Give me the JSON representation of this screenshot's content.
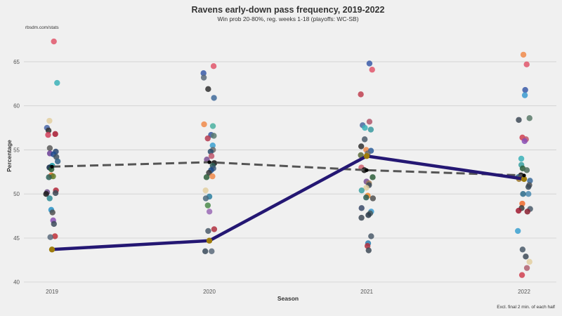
{
  "chart_data": {
    "type": "scatter",
    "title": "Ravens early-down pass frequency, 2019-2022",
    "subtitle": "Win prob 20-80%, reg. weeks 1-18 (playoffs: WC-SB)",
    "credit": "rbsdm.com/stats",
    "note": "Excl. final 2 min. of each half",
    "xlabel": "Season",
    "ylabel": "Percentage",
    "categories": [
      "2019",
      "2020",
      "2021",
      "2022"
    ],
    "ylim": [
      39.5,
      68.5
    ],
    "yticks": [
      40,
      45,
      50,
      55,
      60,
      65
    ],
    "grid": true,
    "ravens": {
      "values": [
        43.7,
        44.7,
        54.3,
        51.7
      ],
      "color": "#241773"
    },
    "league_average": {
      "values": [
        53.1,
        53.6,
        52.7,
        52.1
      ],
      "color": "#555555"
    },
    "teams": [
      {
        "season": "2019",
        "values": [
          67.3,
          62.6,
          58.3,
          57.5,
          57.2,
          56.8,
          56.7,
          55.2,
          54.8,
          54.6,
          54.5,
          54.2,
          53.7,
          53.2,
          53.0,
          52.8,
          52.1,
          52.0,
          51.9,
          50.4,
          50.2,
          50.1,
          50.0,
          49.5,
          48.2,
          47.9,
          47.0,
          46.6,
          45.2,
          45.1
        ],
        "colors": [
          "#e0566b",
          "#3bb2b9",
          "#e3cfa0",
          "#4a67a8",
          "#2f2f2f",
          "#a71930",
          "#d23f5a",
          "#5b5b5b",
          "#29456f",
          "#6b3f96",
          "#1f4c8f",
          "#3f5261",
          "#2e5f85",
          "#1a9aa5",
          "#0a2342",
          "#2d5e3a",
          "#ec6a2b",
          "#5f7f2c",
          "#2b5f56",
          "#b0283a",
          "#6b4a86",
          "#3e4a57",
          "#1a1a1a",
          "#2e8a94",
          "#2792c8",
          "#505050",
          "#8a4fb5",
          "#3c4a5a",
          "#c03038",
          "#5a6b7d"
        ]
      },
      {
        "season": "2020",
        "values": [
          64.5,
          63.7,
          63.2,
          61.9,
          60.9,
          57.9,
          57.7,
          56.7,
          56.6,
          56.3,
          55.5,
          55.0,
          54.8,
          54.3,
          53.9,
          53.5,
          53.2,
          52.9,
          52.7,
          52.4,
          52.0,
          51.9,
          50.4,
          49.7,
          49.5,
          48.7,
          48.0,
          46.0,
          45.8,
          43.5,
          43.5
        ],
        "colors": [
          "#e0566b",
          "#3a5ba8",
          "#5b6a7a",
          "#303030",
          "#3f6a9a",
          "#f08a4a",
          "#4ab0a0",
          "#3858a0",
          "#5a7a70",
          "#b43a50",
          "#3aa0d0",
          "#6a6a6a",
          "#2d4f6d",
          "#c0566b",
          "#7a4f92",
          "#101010",
          "#2b5f56",
          "#3e5b7a",
          "#1a4a8a",
          "#3a3a3a",
          "#f08a4a",
          "#2d5e3a",
          "#e3cfa0",
          "#2b7fa0",
          "#4a6a7d",
          "#4a8a4a",
          "#9a6ab5",
          "#b03040",
          "#4a5a6a",
          "#3a4a5a",
          "#5a6a7a"
        ]
      },
      {
        "season": "2021",
        "values": [
          64.8,
          64.1,
          61.3,
          58.2,
          57.8,
          57.5,
          57.3,
          56.2,
          55.4,
          55.0,
          54.9,
          54.6,
          54.4,
          53.0,
          52.7,
          51.9,
          51.4,
          51.2,
          51.0,
          50.7,
          50.4,
          49.8,
          49.6,
          49.5,
          48.4,
          48.0,
          47.8,
          47.6,
          47.3,
          45.2,
          44.4,
          44.1,
          43.6
        ],
        "colors": [
          "#3a5ba8",
          "#e0566b",
          "#c04050",
          "#b0566b",
          "#4a6aa0",
          "#3bb2b9",
          "#3a9aa0",
          "#4a5a6a",
          "#303030",
          "#f08a4a",
          "#2d5e9a",
          "#6a6a6a",
          "#5a6a3a",
          "#d06070",
          "#101010",
          "#2d5e3a",
          "#7a4f92",
          "#a07a50",
          "#3a4a5a",
          "#e3cfa0",
          "#3aa0a0",
          "#f0882a",
          "#2b5f56",
          "#505050",
          "#3a4a6a",
          "#3a9ad0",
          "#4a5a5a",
          "#2a3a4a",
          "#3e4a57",
          "#4a5a6a",
          "#2d7fb0",
          "#b03040",
          "#3e4a57"
        ]
      },
      {
        "season": "2022",
        "values": [
          65.8,
          64.7,
          61.8,
          61.2,
          58.6,
          58.4,
          56.4,
          56.2,
          56.0,
          54.0,
          53.3,
          52.9,
          52.7,
          52.1,
          51.9,
          51.7,
          51.5,
          51.0,
          50.8,
          50.0,
          50.0,
          48.9,
          48.4,
          48.3,
          48.1,
          48.0,
          45.8,
          43.7,
          42.9,
          42.3,
          41.6,
          40.8
        ],
        "colors": [
          "#f08a4a",
          "#e0566b",
          "#3a5ba8",
          "#3a9ad0",
          "#5a7a6a",
          "#3e4a57",
          "#d04050",
          "#c0566b",
          "#8a4fb5",
          "#3bb2b9",
          "#3aa0a0",
          "#2d5e3a",
          "#4a6a5a",
          "#101010",
          "#2b5f86",
          "#a07a30",
          "#3a6a9a",
          "#505050",
          "#3a4a5a",
          "#4a8ab0",
          "#2a6a8a",
          "#f06a2a",
          "#3a3a3a",
          "#4a5a6a",
          "#a01a30",
          "#8a2030",
          "#3aa0d0",
          "#4a5a6a",
          "#3e4a57",
          "#e3cfa0",
          "#b06070",
          "#d04050"
        ]
      }
    ],
    "ravens_dot_color": "#9e7c0c",
    "league_dot_color": "#000000"
  }
}
